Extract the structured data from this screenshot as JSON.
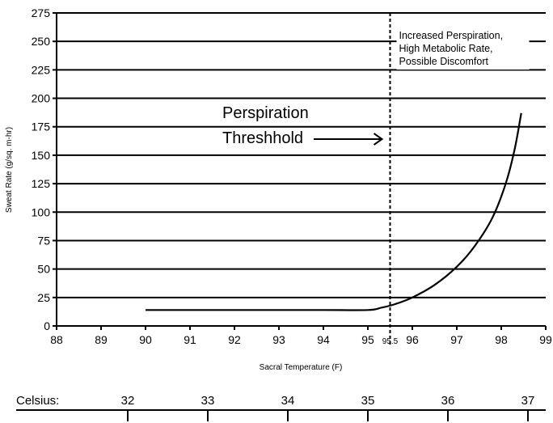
{
  "chart_data": {
    "type": "line",
    "title": "",
    "xlabel": "Sacral Temperature (F)",
    "ylabel": "Sweat Rate (g/sq. m-hr)",
    "xlim": [
      88,
      99
    ],
    "ylim": [
      0,
      275
    ],
    "x_ticks": [
      88,
      89,
      90,
      91,
      92,
      93,
      94,
      95,
      96,
      97,
      98,
      99
    ],
    "y_ticks": [
      0,
      25,
      50,
      75,
      100,
      125,
      150,
      175,
      200,
      225,
      250,
      275
    ],
    "grid": "horizontal",
    "series": [
      {
        "name": "",
        "x": [
          90.0,
          91.0,
          92.0,
          93.0,
          94.0,
          95.0,
          95.3,
          95.6,
          96.0,
          96.5,
          97.0,
          97.4,
          97.8,
          98.1,
          98.3,
          98.45
        ],
        "y": [
          14,
          14,
          14,
          14,
          14,
          14,
          16,
          19,
          25,
          36,
          52,
          70,
          95,
          125,
          155,
          187
        ]
      }
    ],
    "threshold": {
      "x": 95.5,
      "label": "95.5"
    },
    "annotations": {
      "threshold_line1": "Perspiration",
      "threshold_line2": "Threshhold",
      "region_line1": "Increased Perspiration,",
      "region_line2": "High Metabolic Rate,",
      "region_line3": "Possible Discomfort"
    },
    "celsius_scale": {
      "label": "Celsius:",
      "ticks": [
        32,
        33,
        34,
        35,
        36,
        37
      ]
    }
  }
}
